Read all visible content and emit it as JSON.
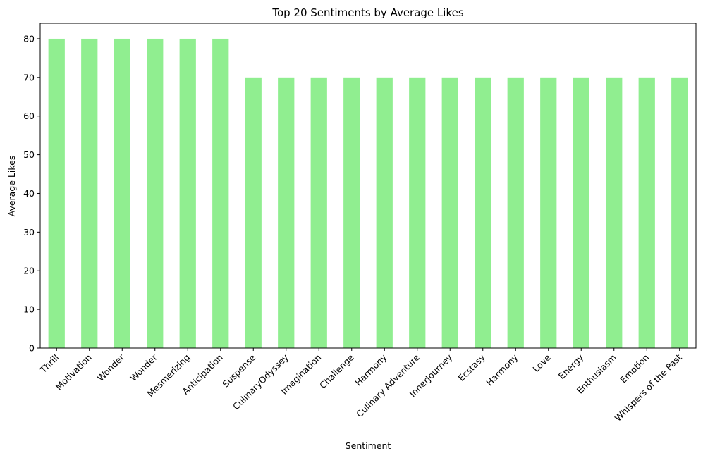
{
  "chart_data": {
    "type": "bar",
    "title": "Top 20 Sentiments by Average Likes",
    "xlabel": "Sentiment",
    "ylabel": "Average Likes",
    "categories": [
      "Thrill",
      "Motivation",
      "Wonder",
      "Wonder",
      "Mesmerizing",
      "Anticipation",
      "Suspense",
      "CulinaryOdyssey",
      "Imagination",
      "Challenge",
      "Harmony",
      "Culinary Adventure",
      "InnerJourney",
      "Ecstasy",
      "Harmony",
      "Love",
      "Energy",
      "Enthusiasm",
      "Emotion",
      "Whispers of the Past"
    ],
    "values": [
      80,
      80,
      80,
      80,
      80,
      80,
      70,
      70,
      70,
      70,
      70,
      70,
      70,
      70,
      70,
      70,
      70,
      70,
      70,
      70
    ],
    "yticks": [
      0,
      10,
      20,
      30,
      40,
      50,
      60,
      70,
      80
    ],
    "ylim": [
      0,
      84
    ],
    "bar_color": "#90ee90",
    "grid": false,
    "legend": "none"
  }
}
